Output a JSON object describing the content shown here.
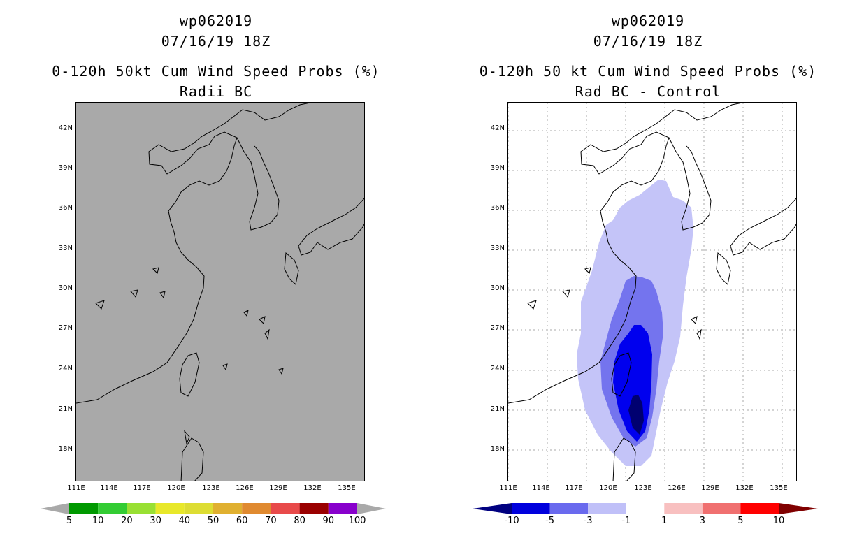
{
  "left": {
    "title": [
      "wp062019",
      "07/16/19 18Z",
      "0-120h 50kt Cum Wind Speed Probs (%)",
      "Radii BC"
    ],
    "lat_labels": [
      "42N",
      "39N",
      "36N",
      "33N",
      "30N",
      "27N",
      "24N",
      "21N",
      "18N"
    ],
    "lon_labels": [
      "111E",
      "114E",
      "117E",
      "120E",
      "123E",
      "126E",
      "129E",
      "132E",
      "135E"
    ],
    "colorbar": {
      "labels": [
        "5",
        "10",
        "20",
        "30",
        "40",
        "50",
        "60",
        "70",
        "80",
        "90",
        "100"
      ],
      "colors": [
        "#009900",
        "#33cc33",
        "#99e033",
        "#e8e82a",
        "#dddd33",
        "#e0b030",
        "#e08a30",
        "#e84a4a",
        "#9a0000",
        "#8800cc"
      ],
      "end_color": "#a9a9a9"
    }
  },
  "right": {
    "title": [
      "wp062019",
      "07/16/19 18Z",
      "0-120h 50 kt Cum Wind Speed Probs (%)",
      "Rad BC - Control"
    ],
    "lat_labels": [
      "42N",
      "39N",
      "36N",
      "33N",
      "30N",
      "27N",
      "24N",
      "21N",
      "18N"
    ],
    "lon_labels": [
      "111E",
      "114E",
      "117E",
      "120E",
      "123E",
      "126E",
      "129E",
      "132E",
      "135E"
    ],
    "colorbar": {
      "labels": [
        "-10",
        "-5",
        "-3",
        "-1",
        "1",
        "3",
        "5",
        "10"
      ],
      "colors": [
        "#0000dd",
        "#6a6aee",
        "#c0c0f8",
        "#ffffff",
        "#f8c0c0",
        "#f07070",
        "#ff0000"
      ],
      "end_left": "#000080",
      "end_right": "#800000"
    }
  },
  "map_colors": {
    "gray_fill": "#a9a9a9",
    "diff_light": "#c4c4f8",
    "diff_mid": "#7474ee",
    "diff_strong": "#0000ee",
    "diff_darkest": "#000070"
  }
}
